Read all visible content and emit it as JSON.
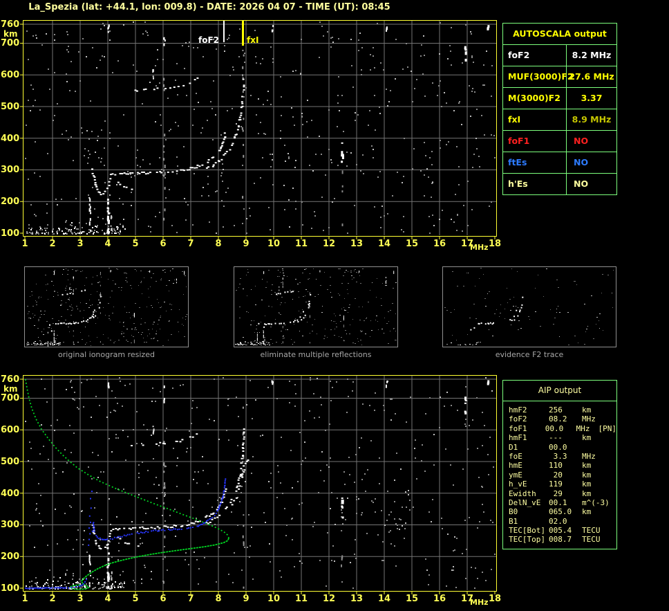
{
  "header": {
    "title": "La_Spezia (lat: +44.1, lon: 009.8) - DATE: 2026 04 07 - TIME (UT): 08:45"
  },
  "autoscala": {
    "title": "AUTOSCALA output",
    "rows": [
      {
        "label": "foF2",
        "value": "8.2 MHz",
        "label_color": "#ffffff",
        "value_color": "#ffffff"
      },
      {
        "label": "MUF(3000)F2",
        "value": "27.6 MHz",
        "label_color": "#ffff00",
        "value_color": "#ffff00"
      },
      {
        "label": "M(3000)F2",
        "value": "3.37",
        "label_color": "#ffff00",
        "value_color": "#ffff00"
      },
      {
        "label": "fxI",
        "value": "8.9 MHz",
        "label_color": "#ffff00",
        "value_color": "#c6c600"
      },
      {
        "label": "foF1",
        "value": "NO",
        "label_color": "#ff2020",
        "value_color": "#ff2020"
      },
      {
        "label": "ftEs",
        "value": "NO",
        "label_color": "#2d7bff",
        "value_color": "#2d7bff"
      },
      {
        "label": "h'Es",
        "value": "NO",
        "label_color": "#ffff9f",
        "value_color": "#ffff9f"
      }
    ]
  },
  "thumbnails": [
    {
      "caption": "original ionogram resized"
    },
    {
      "caption": "eliminate multiple reflections"
    },
    {
      "caption": "evidence F2 trace"
    }
  ],
  "aip": {
    "title": "AIP output",
    "rows": [
      {
        "label": "hmF2",
        "value": "256",
        "unit": "km"
      },
      {
        "label": "foF2",
        "value": "08.2",
        "unit": "MHz"
      },
      {
        "label": "foF1",
        "value": "00.0",
        "unit": "MHz",
        "extra": "[PN]"
      },
      {
        "label": "hmF1",
        "value": "---",
        "unit": "km"
      },
      {
        "label": "D1",
        "value": "00.0",
        "unit": ""
      },
      {
        "label": "foE",
        "value": " 3.3",
        "unit": "MHz"
      },
      {
        "label": "hmE",
        "value": "110",
        "unit": "km"
      },
      {
        "label": "ymE",
        "value": " 20",
        "unit": "km"
      },
      {
        "label": "h_vE",
        "value": "119",
        "unit": "km"
      },
      {
        "label": "Ewidth",
        "value": " 29",
        "unit": "km"
      },
      {
        "label": "DelN_vE",
        "value": "00.1",
        "unit": "m^(-3)"
      },
      {
        "label": "B0",
        "value": "065.0",
        "unit": "km"
      },
      {
        "label": "B1",
        "value": "02.0",
        "unit": ""
      },
      {
        "label": "TEC[Bot]",
        "value": "005.4",
        "unit": "TECU"
      },
      {
        "label": "TEC[Top]",
        "value": "008.7",
        "unit": "TECU"
      }
    ]
  },
  "colors": {
    "axis_label": "#ffff55",
    "border": "#ffff33",
    "grid": "#757575",
    "speckle": "#8a8a8a",
    "trace_white": "#ffffff",
    "profile_green": "#00d422",
    "trace_blue": "#2836ff",
    "table_border": "#7dff7d",
    "caption_gray": "#a8a8a8"
  },
  "chart_data": [
    {
      "id": "ionogram_top",
      "type": "scatter",
      "x_label": "MHz",
      "y_label": "km",
      "x_range": [
        1,
        18
      ],
      "y_range": [
        100,
        760
      ],
      "x_ticks": [
        1,
        2,
        3,
        4,
        5,
        6,
        7,
        8,
        9,
        10,
        11,
        12,
        13,
        14,
        15,
        16,
        17,
        18
      ],
      "y_ticks": [
        760,
        700,
        600,
        500,
        400,
        300,
        200,
        100
      ],
      "grid": true,
      "markers": [
        {
          "name": "foF2",
          "freq": 8.2,
          "color": "#ffffff",
          "label": "foF2"
        },
        {
          "name": "fxI",
          "freq": 8.875,
          "color": "#ffff00",
          "label": "fxI"
        }
      ],
      "traces": {
        "hook": [
          [
            3.42,
            305
          ],
          [
            3.45,
            285
          ],
          [
            3.5,
            265
          ],
          [
            3.56,
            246
          ],
          [
            3.63,
            233
          ],
          [
            3.72,
            226
          ],
          [
            3.83,
            227
          ],
          [
            3.93,
            236
          ],
          [
            4.0,
            250
          ],
          [
            4.03,
            264
          ],
          [
            4.06,
            278
          ]
        ],
        "flat": [
          [
            4.08,
            285
          ],
          [
            4.4,
            289
          ],
          [
            4.8,
            291
          ],
          [
            5.2,
            292
          ],
          [
            5.6,
            293
          ],
          [
            6.0,
            295
          ],
          [
            6.3,
            297
          ],
          [
            6.6,
            300
          ],
          [
            6.9,
            305
          ],
          [
            7.1,
            310
          ],
          [
            7.3,
            316
          ],
          [
            7.5,
            324
          ],
          [
            7.7,
            334
          ],
          [
            7.85,
            346
          ],
          [
            7.98,
            360
          ],
          [
            8.08,
            376
          ],
          [
            8.15,
            392
          ],
          [
            8.2,
            408
          ],
          [
            8.23,
            424
          ]
        ],
        "xbranch": [
          [
            7.55,
            308
          ],
          [
            7.75,
            316
          ],
          [
            7.95,
            327
          ],
          [
            8.12,
            340
          ],
          [
            8.28,
            356
          ],
          [
            8.42,
            374
          ],
          [
            8.53,
            394
          ],
          [
            8.63,
            417
          ],
          [
            8.71,
            443
          ],
          [
            8.77,
            472
          ],
          [
            8.82,
            504
          ],
          [
            8.85,
            535
          ],
          [
            8.87,
            562
          ],
          [
            8.88,
            590
          ],
          [
            8.89,
            612
          ]
        ],
        "lower_arc": [
          [
            4.35,
            262
          ],
          [
            4.5,
            252
          ],
          [
            4.65,
            244
          ],
          [
            4.85,
            238
          ],
          [
            5.05,
            236
          ],
          [
            5.2,
            238
          ]
        ],
        "second_hop": [
          [
            4.85,
            552
          ],
          [
            5.15,
            555
          ],
          [
            5.45,
            557
          ],
          [
            5.75,
            559
          ],
          [
            6.05,
            561
          ],
          [
            6.35,
            564
          ],
          [
            6.6,
            568
          ],
          [
            6.85,
            574
          ],
          [
            7.05,
            581
          ],
          [
            7.2,
            590
          ],
          [
            7.3,
            599
          ]
        ]
      },
      "interference_columns": [
        {
          "f": 3.33,
          "range": [
            100,
            215
          ],
          "n": 10,
          "w": 2,
          "color": "#ffffff"
        },
        {
          "f": 3.98,
          "range": [
            100,
            230
          ],
          "n": 16,
          "w": 3,
          "color": "#ffffff"
        },
        {
          "f": 4.1,
          "range": [
            100,
            160
          ],
          "n": 6,
          "w": 2,
          "color": "#cccccc"
        },
        {
          "f": 4.0,
          "range": [
            735,
            760
          ],
          "n": 4,
          "w": 2,
          "color": "#ffffff"
        },
        {
          "f": 6.02,
          "range": [
            100,
            755
          ],
          "n": 14,
          "w": 2,
          "color": "#999999"
        },
        {
          "f": 6.02,
          "range": [
            690,
            760
          ],
          "n": 4,
          "w": 2,
          "color": "#ffffff"
        },
        {
          "f": 5.62,
          "range": [
            585,
            620
          ],
          "n": 4,
          "w": 2,
          "color": "#dddddd"
        },
        {
          "f": 8.87,
          "range": [
            100,
            755
          ],
          "n": 12,
          "w": 2,
          "color": "#999999"
        },
        {
          "f": 9.93,
          "range": [
            742,
            760
          ],
          "n": 3,
          "w": 2,
          "color": "#ffffff"
        },
        {
          "f": 12.45,
          "range": [
            320,
            390
          ],
          "n": 7,
          "w": 3,
          "color": "#ffffff"
        },
        {
          "f": 12.45,
          "range": [
            100,
            310
          ],
          "n": 4,
          "w": 2,
          "color": "#888888"
        },
        {
          "f": 14.07,
          "range": [
            740,
            760
          ],
          "n": 3,
          "w": 2,
          "color": "#ffffff"
        },
        {
          "f": 16.9,
          "range": [
            650,
            705
          ],
          "n": 5,
          "w": 3,
          "color": "#ffffff"
        },
        {
          "f": 17.72,
          "range": [
            735,
            760
          ],
          "n": 3,
          "w": 3,
          "color": "#ffffff"
        }
      ]
    },
    {
      "id": "ionogram_bottom",
      "type": "scatter",
      "x_label": "MHz",
      "y_label": "km",
      "x_range": [
        1,
        18
      ],
      "y_range": [
        100,
        760
      ],
      "x_ticks": [
        1,
        2,
        3,
        4,
        5,
        6,
        7,
        8,
        9,
        10,
        11,
        12,
        13,
        14,
        15,
        16,
        17,
        18
      ],
      "y_ticks": [
        760,
        700,
        600,
        500,
        400,
        300,
        200,
        100
      ],
      "grid": true,
      "extra_white_branch": [
        [
          8.45,
          362
        ],
        [
          8.6,
          388
        ],
        [
          8.72,
          418
        ],
        [
          8.82,
          452
        ],
        [
          8.9,
          486
        ],
        [
          8.98,
          505
        ],
        [
          9.05,
          515
        ]
      ],
      "profile_green": {
        "upper": [
          [
            1.02,
            760
          ],
          [
            1.08,
            730
          ],
          [
            1.15,
            700
          ],
          [
            1.25,
            668
          ],
          [
            1.4,
            635
          ],
          [
            1.6,
            602
          ],
          [
            1.85,
            572
          ],
          [
            2.1,
            545
          ],
          [
            2.35,
            522
          ],
          [
            2.6,
            502
          ],
          [
            2.9,
            480
          ],
          [
            3.3,
            458
          ],
          [
            3.7,
            438
          ],
          [
            4.2,
            418
          ],
          [
            4.7,
            400
          ],
          [
            5.2,
            383
          ],
          [
            5.7,
            366
          ],
          [
            6.2,
            350
          ],
          [
            6.7,
            333
          ],
          [
            7.2,
            317
          ],
          [
            7.6,
            303
          ],
          [
            7.95,
            290
          ],
          [
            8.2,
            278
          ],
          [
            8.33,
            268
          ],
          [
            8.38,
            258
          ]
        ],
        "lower": [
          [
            8.38,
            258
          ],
          [
            8.33,
            250
          ],
          [
            8.2,
            244
          ],
          [
            7.9,
            237
          ],
          [
            7.5,
            231
          ],
          [
            7.0,
            225
          ],
          [
            6.5,
            219
          ],
          [
            6.0,
            213
          ],
          [
            5.5,
            206
          ],
          [
            5.0,
            198
          ],
          [
            4.6,
            190
          ],
          [
            4.2,
            181
          ],
          [
            3.9,
            172
          ],
          [
            3.65,
            162
          ],
          [
            3.45,
            152
          ],
          [
            3.3,
            143
          ],
          [
            3.18,
            135
          ],
          [
            3.1,
            128
          ],
          [
            3.05,
            122
          ],
          [
            3.08,
            116
          ],
          [
            3.15,
            111
          ],
          [
            3.25,
            106
          ],
          [
            3.3,
            102
          ],
          [
            3.2,
            98
          ],
          [
            3.0,
            96
          ],
          [
            2.8,
            97
          ],
          [
            2.68,
            100
          ],
          [
            2.65,
            104
          ],
          [
            2.75,
            108
          ],
          [
            2.95,
            110
          ],
          [
            3.05,
            109
          ]
        ]
      },
      "trace_blue": {
        "e_layer": [
          [
            1.0,
            102
          ],
          [
            2.5,
            103
          ]
        ],
        "e_rise": [
          [
            2.55,
            103
          ],
          [
            2.65,
            104
          ],
          [
            2.75,
            105
          ],
          [
            2.85,
            107
          ],
          [
            2.95,
            109
          ],
          [
            3.0,
            110
          ],
          [
            3.05,
            112
          ],
          [
            3.1,
            116
          ],
          [
            3.15,
            122
          ],
          [
            3.2,
            130
          ]
        ],
        "scatter": [
          [
            3.28,
            238
          ],
          [
            3.3,
            256
          ],
          [
            3.33,
            274
          ],
          [
            3.3,
            292
          ],
          [
            3.35,
            310
          ],
          [
            3.32,
            330
          ],
          [
            3.37,
            355
          ],
          [
            3.35,
            385
          ],
          [
            3.4,
            408
          ],
          [
            3.45,
            300
          ],
          [
            3.42,
            282
          ]
        ],
        "f_layer": [
          [
            3.45,
            310
          ],
          [
            3.47,
            295
          ],
          [
            3.5,
            280
          ],
          [
            3.55,
            268
          ],
          [
            3.6,
            262
          ],
          [
            3.7,
            258
          ],
          [
            3.8,
            256
          ],
          [
            3.9,
            255
          ],
          [
            4.0,
            256
          ],
          [
            4.15,
            259
          ],
          [
            4.3,
            262
          ],
          [
            4.5,
            266
          ],
          [
            4.7,
            270
          ],
          [
            4.9,
            273
          ],
          [
            5.1,
            276
          ],
          [
            5.3,
            279
          ],
          [
            5.5,
            281
          ],
          [
            5.7,
            283
          ],
          [
            5.9,
            285
          ],
          [
            6.1,
            287
          ],
          [
            6.3,
            288
          ],
          [
            6.5,
            289
          ],
          [
            6.7,
            290
          ],
          [
            6.9,
            292
          ],
          [
            7.05,
            294
          ],
          [
            7.2,
            298
          ],
          [
            7.35,
            303
          ],
          [
            7.5,
            310
          ],
          [
            7.65,
            318
          ],
          [
            7.8,
            328
          ],
          [
            7.9,
            340
          ],
          [
            8.0,
            354
          ],
          [
            8.05,
            368
          ],
          [
            8.1,
            382
          ],
          [
            8.15,
            396
          ],
          [
            8.18,
            410
          ],
          [
            8.2,
            424
          ],
          [
            8.22,
            438
          ],
          [
            8.25,
            452
          ]
        ]
      }
    }
  ]
}
